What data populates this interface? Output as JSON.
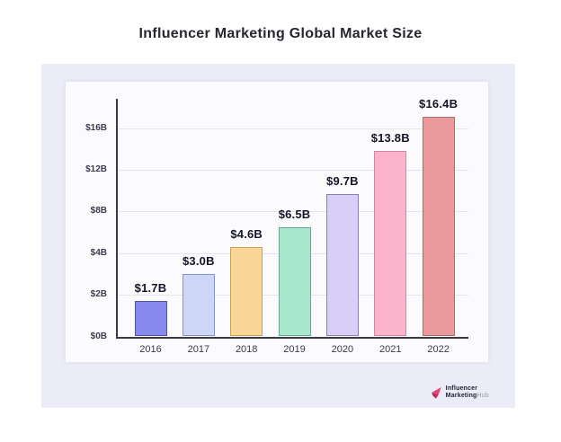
{
  "header": {
    "title": "Influencer Marketing Global Market Size"
  },
  "chart_data": {
    "type": "bar",
    "title": "Influencer Marketing Global Market Size",
    "categories": [
      "2016",
      "2017",
      "2018",
      "2019",
      "2020",
      "2021",
      "2022"
    ],
    "values": [
      1.7,
      3.0,
      4.6,
      6.5,
      9.7,
      13.8,
      16.4
    ],
    "data_labels": [
      "$1.7B",
      "$3.0B",
      "$4.6B",
      "$6.5B",
      "$9.7B",
      "$13.8B",
      "$16.4B"
    ],
    "xlabel": "",
    "ylabel": "",
    "y_ticks": {
      "values": [
        0,
        2,
        4,
        8,
        12,
        16
      ],
      "labels": [
        "$0B",
        "$2B",
        "$4B",
        "$8B",
        "$12B",
        "$16B"
      ],
      "axis_max": 17,
      "scale": "uniform-tick-spacing"
    },
    "ylim": [
      0,
      17
    ],
    "grid": true,
    "legend": "none",
    "bar_styles": [
      {
        "fill": "#8789ec",
        "border": "#4f53a6"
      },
      {
        "fill": "#cdd6f7",
        "border": "#8595cc"
      },
      {
        "fill": "#fbd699",
        "border": "#c9a050"
      },
      {
        "fill": "#a9e8cf",
        "border": "#63ab8d"
      },
      {
        "fill": "#d9cef7",
        "border": "#8a7fb4"
      },
      {
        "fill": "#fcb4cd",
        "border": "#d3869f"
      },
      {
        "fill": "#ea9a9b",
        "border": "#a96f6f"
      }
    ]
  },
  "branding": {
    "line1": "Influencer",
    "line2_dark": "Marketing",
    "line2_light": "Hub",
    "icon_color_main": "#e94176",
    "icon_color_fold": "#c22a5c"
  },
  "colors": {
    "page_bg": "#ffffff",
    "panel_bg": "#ebecf7",
    "card_bg": "#fbfbfd",
    "grid": "#e4e5ef",
    "axis": "#3a3a44",
    "title_text": "#26262e",
    "tick_text": "#3c3c52",
    "year_text": "#3a3a46",
    "value_text": "#15152a"
  }
}
